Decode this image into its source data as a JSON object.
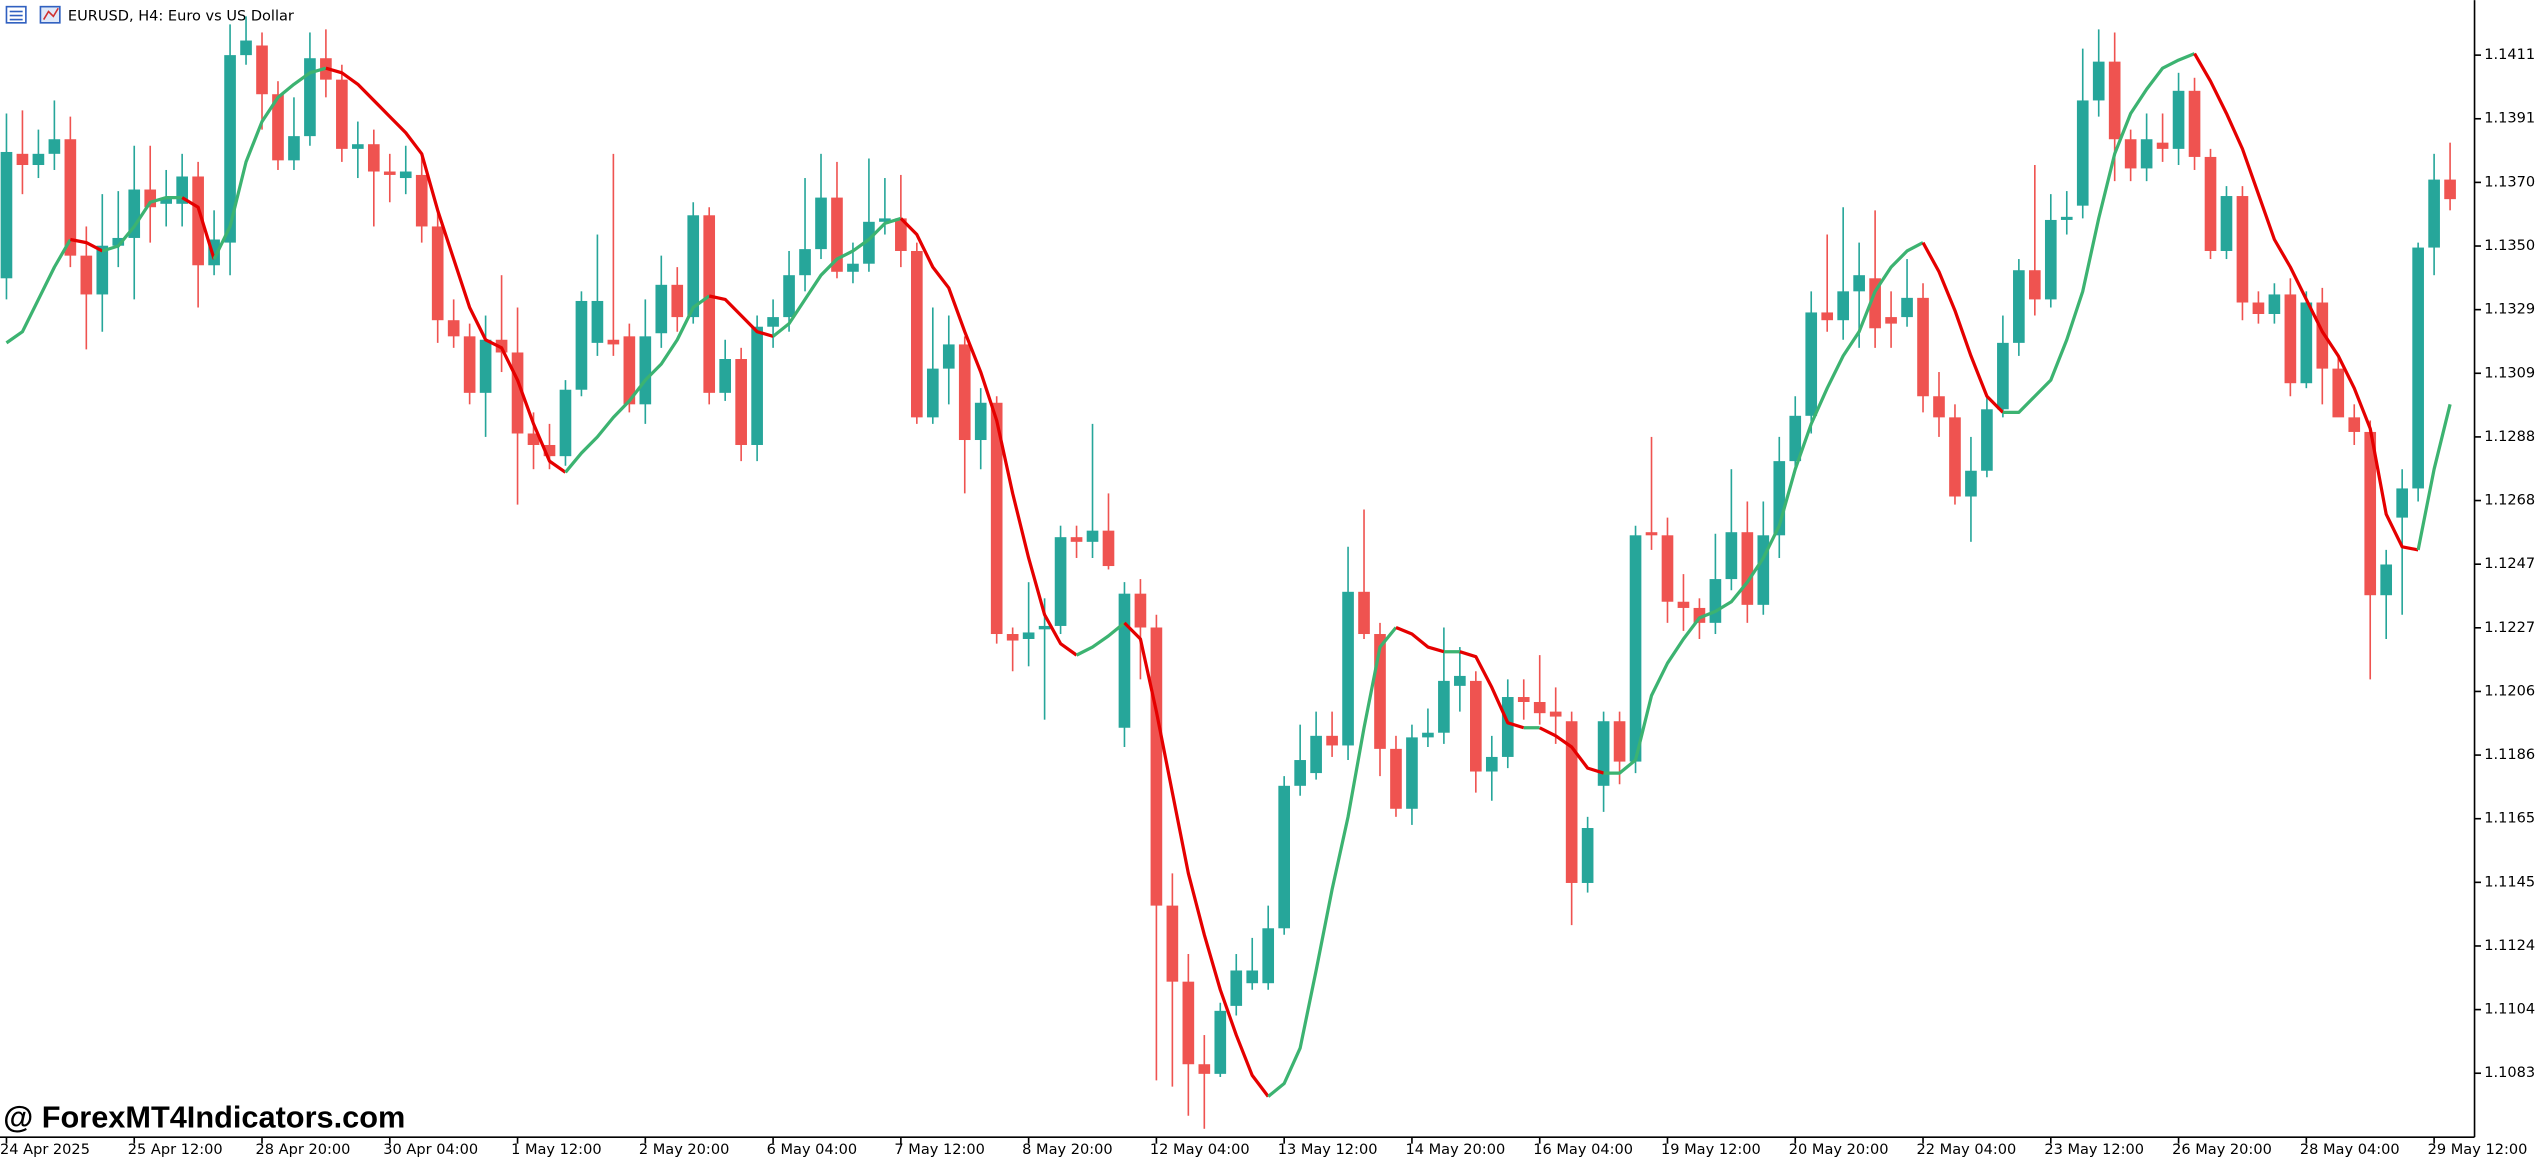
{
  "chart_data": {
    "type": "candlestick",
    "title": "EURUSD, H4:  Euro vs US Dollar",
    "watermark": "@ ForexMT4Indicators.com",
    "up_color": "#26a69a",
    "down_color": "#ef5350",
    "ma_up_color": "#3cb371",
    "ma_down_color": "#e50000",
    "ylim": [
      1.10629,
      1.14292
    ],
    "yticks": [
      1.14115,
      {
        "value": 1.1391,
        "label": "1.13910"
      },
      1.13705,
      {
        "value": 1.135,
        "label": "1.13500"
      },
      1.13295,
      {
        "value": 1.1309,
        "label": "1.13090"
      },
      1.12885,
      {
        "value": 1.1268,
        "label": "1.12680"
      },
      1.12475,
      {
        "value": 1.1227,
        "label": "1.12270"
      },
      1.12065,
      {
        "value": 1.1186,
        "label": "1.11860"
      },
      1.11655,
      {
        "value": 1.1145,
        "label": "1.11450"
      },
      1.11245,
      {
        "value": 1.1104,
        "label": "1.11040"
      },
      1.10835
    ],
    "categories": [
      "24 Apr 2025",
      null,
      null,
      null,
      null,
      null,
      null,
      null,
      "25 Apr 12:00",
      null,
      null,
      null,
      null,
      null,
      null,
      null,
      "28 Apr 20:00",
      null,
      null,
      null,
      null,
      null,
      null,
      null,
      "30 Apr 04:00",
      null,
      null,
      null,
      null,
      null,
      null,
      null,
      "1 May 12:00",
      null,
      null,
      null,
      null,
      null,
      null,
      null,
      "2 May 20:00",
      null,
      null,
      null,
      null,
      null,
      null,
      null,
      "6 May 04:00",
      null,
      null,
      null,
      null,
      null,
      null,
      null,
      "7 May 12:00",
      null,
      null,
      null,
      null,
      null,
      null,
      null,
      "8 May 20:00",
      null,
      null,
      null,
      null,
      null,
      null,
      null,
      "12 May 04:00",
      null,
      null,
      null,
      null,
      null,
      null,
      null,
      "13 May 12:00",
      null,
      null,
      null,
      null,
      null,
      null,
      null,
      "14 May 20:00",
      null,
      null,
      null,
      null,
      null,
      null,
      null,
      "16 May 04:00",
      null,
      null,
      null,
      null,
      null,
      null,
      null,
      "19 May 12:00",
      null,
      null,
      null,
      null,
      null,
      null,
      null,
      "20 May 20:00",
      null,
      null,
      null,
      null,
      null,
      null,
      null,
      "22 May 04:00",
      null,
      null,
      null,
      null,
      null,
      null,
      null,
      "23 May 12:00",
      null,
      null,
      null,
      null,
      null,
      null,
      null,
      "26 May 20:00",
      null,
      null,
      null,
      null,
      null,
      null,
      null,
      "28 May 04:00",
      null,
      null,
      null,
      null,
      null,
      null,
      null,
      "29 May 12:00",
      null
    ],
    "candles": [
      [
        1.13396,
        1.13927,
        1.13328,
        1.13803
      ],
      [
        1.13797,
        1.13937,
        1.13667,
        1.13761
      ],
      [
        1.13761,
        1.13875,
        1.13719,
        1.13797
      ],
      [
        1.13797,
        1.13969,
        1.13745,
        1.13844
      ],
      [
        1.13844,
        1.13917,
        1.13432,
        1.13469
      ],
      [
        1.13469,
        1.13563,
        1.13167,
        1.13344
      ],
      [
        1.13344,
        1.13667,
        1.13224,
        1.13501
      ],
      [
        1.13501,
        1.13677,
        1.13432,
        1.13526
      ],
      [
        1.13526,
        1.13823,
        1.13328,
        1.13682
      ],
      [
        1.13682,
        1.13823,
        1.13511,
        1.13625
      ],
      [
        1.13636,
        1.13745,
        1.13563,
        1.13656
      ],
      [
        1.13636,
        1.13797,
        1.13563,
        1.13724
      ],
      [
        1.13724,
        1.13771,
        1.13302,
        1.13438
      ],
      [
        1.13438,
        1.13615,
        1.13406,
        1.13521
      ],
      [
        1.13511,
        1.14214,
        1.13406,
        1.14115
      ],
      [
        1.14115,
        1.1424,
        1.14084,
        1.14162
      ],
      [
        1.14146,
        1.14188,
        1.13875,
        1.13989
      ],
      [
        1.13989,
        1.14031,
        1.13745,
        1.13776
      ],
      [
        1.13776,
        1.13979,
        1.13745,
        1.13854
      ],
      [
        1.13854,
        1.14188,
        1.13823,
        1.14105
      ],
      [
        1.14105,
        1.14198,
        1.13979,
        1.14036
      ],
      [
        1.14036,
        1.14084,
        1.13771,
        1.13813
      ],
      [
        1.13813,
        1.13901,
        1.13719,
        1.13828
      ],
      [
        1.13828,
        1.13875,
        1.13563,
        1.1374
      ],
      [
        1.1374,
        1.13797,
        1.13641,
        1.13729
      ],
      [
        1.13719,
        1.13823,
        1.13667,
        1.1374
      ],
      [
        1.13729,
        1.13797,
        1.13511,
        1.13563
      ],
      [
        1.13563,
        1.13615,
        1.13188,
        1.13261
      ],
      [
        1.13261,
        1.13328,
        1.13172,
        1.13209
      ],
      [
        1.13209,
        1.1325,
        1.1299,
        1.13027
      ],
      [
        1.13027,
        1.13276,
        1.12885,
        1.13198
      ],
      [
        1.13198,
        1.13406,
        1.13094,
        1.13157
      ],
      [
        1.13157,
        1.13302,
        1.12667,
        1.12896
      ],
      [
        1.12896,
        1.12964,
        1.12781,
        1.12859
      ],
      [
        1.12859,
        1.12927,
        1.12781,
        1.12823
      ],
      [
        1.12823,
        1.13068,
        1.12792,
        1.13037
      ],
      [
        1.13037,
        1.13354,
        1.13016,
        1.13323
      ],
      [
        1.13188,
        1.13537,
        1.13146,
        1.13323
      ],
      [
        1.13198,
        1.13797,
        1.13146,
        1.13183
      ],
      [
        1.13209,
        1.1325,
        1.12964,
        1.1299
      ],
      [
        1.1299,
        1.13328,
        1.12927,
        1.13209
      ],
      [
        1.13219,
        1.13469,
        1.13172,
        1.13375
      ],
      [
        1.13375,
        1.13432,
        1.13224,
        1.13271
      ],
      [
        1.13271,
        1.13641,
        1.1325,
        1.13599
      ],
      [
        1.13599,
        1.13625,
        1.1299,
        1.13027
      ],
      [
        1.13027,
        1.13198,
        1.13001,
        1.13136
      ],
      [
        1.13136,
        1.13172,
        1.12807,
        1.12859
      ],
      [
        1.12859,
        1.13276,
        1.12807,
        1.1324
      ],
      [
        1.1324,
        1.13328,
        1.13172,
        1.13271
      ],
      [
        1.13271,
        1.13484,
        1.13224,
        1.13406
      ],
      [
        1.13406,
        1.13719,
        1.13354,
        1.1349
      ],
      [
        1.1349,
        1.13797,
        1.13458,
        1.13656
      ],
      [
        1.13656,
        1.13771,
        1.13396,
        1.13417
      ],
      [
        1.13417,
        1.13511,
        1.1338,
        1.13443
      ],
      [
        1.13443,
        1.13782,
        1.13417,
        1.13578
      ],
      [
        1.13578,
        1.13719,
        1.13537,
        1.13589
      ],
      [
        1.13589,
        1.13729,
        1.13432,
        1.13484
      ],
      [
        1.13484,
        1.13511,
        1.12927,
        1.12948
      ],
      [
        1.12948,
        1.13302,
        1.12927,
        1.13105
      ],
      [
        1.13105,
        1.13276,
        1.1299,
        1.13183
      ],
      [
        1.13183,
        1.13209,
        1.12703,
        1.12875
      ],
      [
        1.12875,
        1.13042,
        1.12781,
        1.12995
      ],
      [
        1.12995,
        1.13016,
        1.12219,
        1.1225
      ],
      [
        1.1225,
        1.12271,
        1.1213,
        1.12229
      ],
      [
        1.12234,
        1.12417,
        1.12146,
        1.12255
      ],
      [
        1.12265,
        1.12365,
        1.11974,
        1.12276
      ],
      [
        1.12276,
        1.12599,
        1.1225,
        1.12562
      ],
      [
        1.12562,
        1.12599,
        1.12495,
        1.12547
      ],
      [
        1.12547,
        1.12927,
        1.12495,
        1.12583
      ],
      [
        1.12583,
        1.12703,
        1.12458,
        1.12469
      ],
      [
        1.11948,
        1.12417,
        1.11886,
        1.1238
      ],
      [
        1.1238,
        1.12427,
        1.12104,
        1.12271
      ],
      [
        1.12271,
        1.12312,
        1.10812,
        1.11375
      ],
      [
        1.11375,
        1.11479,
        1.10792,
        1.1113
      ],
      [
        1.1113,
        1.11219,
        1.10698,
        1.10864
      ],
      [
        1.10864,
        1.10958,
        1.10656,
        1.10833
      ],
      [
        1.10833,
        1.11062,
        1.10823,
        1.11036
      ],
      [
        1.11052,
        1.11219,
        1.11021,
        1.11166
      ],
      [
        1.11125,
        1.11271,
        1.11104,
        1.11166
      ],
      [
        1.11125,
        1.11375,
        1.11104,
        1.11302
      ],
      [
        1.11302,
        1.11792,
        1.11281,
        1.11761
      ],
      [
        1.11761,
        1.11958,
        1.11729,
        1.11844
      ],
      [
        1.11802,
        1.12,
        1.11781,
        1.11922
      ],
      [
        1.11922,
        1.12,
        1.11854,
        1.11891
      ],
      [
        1.11891,
        1.12531,
        1.11844,
        1.12386
      ],
      [
        1.12386,
        1.12651,
        1.12234,
        1.1225
      ],
      [
        1.1225,
        1.12286,
        1.11792,
        1.1188
      ],
      [
        1.1188,
        1.11922,
        1.11661,
        1.11687
      ],
      [
        1.11687,
        1.11958,
        1.11635,
        1.11917
      ],
      [
        1.11917,
        1.1201,
        1.11886,
        1.11932
      ],
      [
        1.11932,
        1.12271,
        1.11896,
        1.12099
      ],
      [
        1.12083,
        1.12208,
        1.12,
        1.12115
      ],
      [
        1.12099,
        1.1213,
        1.11739,
        1.11807
      ],
      [
        1.11807,
        1.11922,
        1.11713,
        1.11854
      ],
      [
        1.11854,
        1.12104,
        1.11818,
        1.12047
      ],
      [
        1.12047,
        1.12104,
        1.11974,
        1.12031
      ],
      [
        1.12031,
        1.12182,
        1.11958,
        1.11995
      ],
      [
        1.12,
        1.12078,
        1.11896,
        1.11984
      ],
      [
        1.11969,
        1.12,
        1.11312,
        1.11448
      ],
      [
        1.11448,
        1.11661,
        1.11417,
        1.11625
      ],
      [
        1.11761,
        1.12,
        1.11677,
        1.11969
      ],
      [
        1.11969,
        1.12,
        1.11766,
        1.11839
      ],
      [
        1.11839,
        1.12599,
        1.11802,
        1.12568
      ],
      [
        1.12578,
        1.12885,
        1.12521,
        1.12568
      ],
      [
        1.12568,
        1.12625,
        1.12286,
        1.12354
      ],
      [
        1.12354,
        1.12443,
        1.1226,
        1.12334
      ],
      [
        1.12334,
        1.12365,
        1.12234,
        1.12286
      ],
      [
        1.12286,
        1.12573,
        1.1225,
        1.12427
      ],
      [
        1.12427,
        1.12781,
        1.12391,
        1.12578
      ],
      [
        1.12578,
        1.12677,
        1.12286,
        1.12344
      ],
      [
        1.12344,
        1.12677,
        1.12312,
        1.12568
      ],
      [
        1.12568,
        1.12885,
        1.12495,
        1.12807
      ],
      [
        1.12807,
        1.13016,
        1.12781,
        1.12953
      ],
      [
        1.12953,
        1.13354,
        1.12896,
        1.13286
      ],
      [
        1.13286,
        1.13537,
        1.13224,
        1.13261
      ],
      [
        1.13261,
        1.13625,
        1.13198,
        1.13354
      ],
      [
        1.13354,
        1.13511,
        1.13172,
        1.13406
      ],
      [
        1.13396,
        1.13615,
        1.13172,
        1.13235
      ],
      [
        1.13271,
        1.13354,
        1.13172,
        1.1325
      ],
      [
        1.13271,
        1.13458,
        1.1324,
        1.13333
      ],
      [
        1.13333,
        1.1338,
        1.12964,
        1.13016
      ],
      [
        1.13016,
        1.13094,
        1.12885,
        1.12948
      ],
      [
        1.12948,
        1.1299,
        1.12667,
        1.12693
      ],
      [
        1.12693,
        1.12885,
        1.12547,
        1.12776
      ],
      [
        1.12776,
        1.13016,
        1.12755,
        1.12974
      ],
      [
        1.12974,
        1.13276,
        1.12948,
        1.13188
      ],
      [
        1.13188,
        1.13458,
        1.13146,
        1.13422
      ],
      [
        1.13422,
        1.13761,
        1.13276,
        1.13328
      ],
      [
        1.13328,
        1.13667,
        1.13302,
        1.13584
      ],
      [
        1.13584,
        1.13677,
        1.13537,
        1.13594
      ],
      [
        1.1363,
        1.14136,
        1.13589,
        1.13969
      ],
      [
        1.13969,
        1.14198,
        1.13917,
        1.14094
      ],
      [
        1.14094,
        1.14188,
        1.13709,
        1.13844
      ],
      [
        1.13844,
        1.13875,
        1.13709,
        1.1375
      ],
      [
        1.1375,
        1.13927,
        1.13709,
        1.13844
      ],
      [
        1.13833,
        1.13927,
        1.13771,
        1.13813
      ],
      [
        1.13813,
        1.14058,
        1.13761,
        1.14
      ],
      [
        1.14,
        1.14042,
        1.13745,
        1.13787
      ],
      [
        1.13787,
        1.13813,
        1.13458,
        1.13484
      ],
      [
        1.13484,
        1.13693,
        1.13458,
        1.13661
      ],
      [
        1.13661,
        1.13693,
        1.13261,
        1.13318
      ],
      [
        1.13318,
        1.13354,
        1.1325,
        1.13281
      ],
      [
        1.13281,
        1.1338,
        1.1325,
        1.13344
      ],
      [
        1.13344,
        1.13396,
        1.13016,
        1.13058
      ],
      [
        1.13058,
        1.13354,
        1.13042,
        1.13318
      ],
      [
        1.13318,
        1.13365,
        1.1299,
        1.13105
      ],
      [
        1.13105,
        1.13146,
        1.12964,
        1.12948
      ],
      [
        1.12948,
        1.1299,
        1.12859,
        1.12901
      ],
      [
        1.12901,
        1.12938,
        1.12104,
        1.12375
      ],
      [
        1.12375,
        1.12521,
        1.12234,
        1.12474
      ],
      [
        1.12625,
        1.12781,
        1.12312,
        1.12719
      ],
      [
        1.12719,
        1.13511,
        1.12677,
        1.13495
      ],
      [
        1.13495,
        1.13797,
        1.13406,
        1.13714
      ],
      [
        1.13714,
        1.13833,
        1.13615,
        1.13651
      ]
    ],
    "ma": [
      1.13188,
      1.13224,
      1.13328,
      1.13432,
      1.13521,
      1.13511,
      1.13484,
      1.135,
      1.13563,
      1.13641,
      1.13656,
      1.13656,
      1.13625,
      1.13458,
      1.13563,
      1.13771,
      1.13901,
      1.13979,
      1.14021,
      1.14058,
      1.14073,
      1.14058,
      1.14021,
      1.13969,
      1.13917,
      1.13865,
      1.13797,
      1.13615,
      1.13458,
      1.13302,
      1.13198,
      1.13172,
      1.13068,
      1.12927,
      1.12807,
      1.12771,
      1.12833,
      1.12885,
      1.12948,
      1.13001,
      1.13068,
      1.1312,
      1.13198,
      1.13302,
      1.13339,
      1.13328,
      1.13276,
      1.13224,
      1.13209,
      1.1325,
      1.13328,
      1.13406,
      1.13458,
      1.13484,
      1.13521,
      1.13573,
      1.13589,
      1.13537,
      1.13432,
      1.13365,
      1.13224,
      1.13094,
      1.12938,
      1.12703,
      1.12495,
      1.12312,
      1.12219,
      1.12182,
      1.12208,
      1.12244,
      1.12286,
      1.12234,
      1.12,
      1.11739,
      1.11479,
      1.11281,
      1.11104,
      1.10958,
      1.10828,
      1.1076,
      1.10802,
      1.10916,
      1.11166,
      1.11427,
      1.11661,
      1.11948,
      1.12208,
      1.12271,
      1.1225,
      1.12208,
      1.12193,
      1.12193,
      1.12177,
      1.12078,
      1.11964,
      1.11948,
      1.11948,
      1.11922,
      1.11886,
      1.11818,
      1.11802,
      1.11802,
      1.11844,
      1.12052,
      1.12156,
      1.12234,
      1.12302,
      1.12323,
      1.12354,
      1.12417,
      1.12495,
      1.12599,
      1.12781,
      1.12927,
      1.13042,
      1.13146,
      1.13224,
      1.13354,
      1.13432,
      1.13484,
      1.13511,
      1.13417,
      1.13292,
      1.13146,
      1.13016,
      1.12964,
      1.12964,
      1.13016,
      1.13068,
      1.13198,
      1.13354,
      1.13589,
      1.13797,
      1.13927,
      1.14005,
      1.14073,
      1.14099,
      1.1412,
      1.14031,
      1.13927,
      1.13813,
      1.13667,
      1.13521,
      1.13432,
      1.13328,
      1.13224,
      1.13146,
      1.13042,
      1.12912,
      1.12636,
      1.12531,
      1.12521,
      1.12781,
      1.1299
    ]
  }
}
